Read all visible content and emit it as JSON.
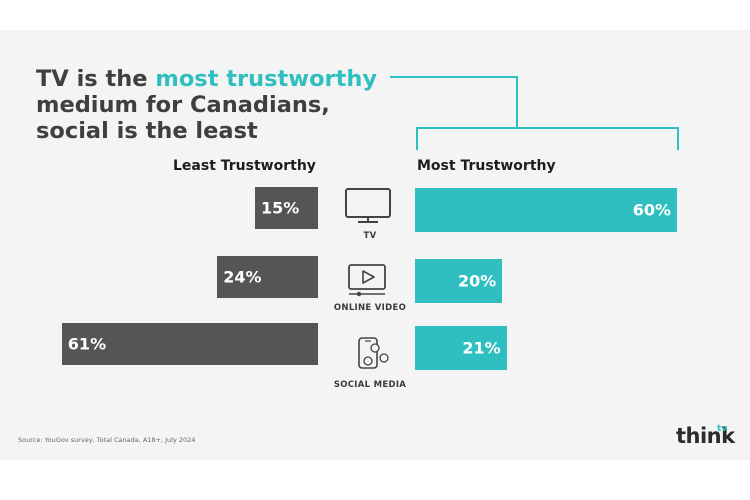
{
  "title": {
    "part1": "TV is the ",
    "accent": "most trustworthy",
    "line2": "medium for Canadians,",
    "line3": "social is the least"
  },
  "colors": {
    "accent": "#2fbfc1",
    "least_bar": "#555555",
    "text_dark": "#3f3f3f",
    "panel": "#f4f4f4"
  },
  "chart_data": {
    "type": "bar",
    "orientation": "horizontal-diverging",
    "categories": [
      "TV",
      "ONLINE VIDEO",
      "SOCIAL MEDIA"
    ],
    "icons": [
      "tv-icon",
      "online-video-icon",
      "social-media-icon"
    ],
    "series": [
      {
        "name": "Least Trustworthy",
        "values": [
          15,
          24,
          61
        ],
        "labels": [
          "15%",
          "24%",
          "61%"
        ]
      },
      {
        "name": "Most Trustworthy",
        "values": [
          60,
          20,
          21
        ],
        "labels": [
          "60%",
          "20%",
          "21%"
        ]
      }
    ],
    "unit": "%",
    "xlim": [
      0,
      100
    ],
    "grid": false
  },
  "footer": {
    "source": "Source: YouGov survey, Total Canada, A18+, July 2024",
    "logo": "think",
    "logo_sup": "tv"
  }
}
